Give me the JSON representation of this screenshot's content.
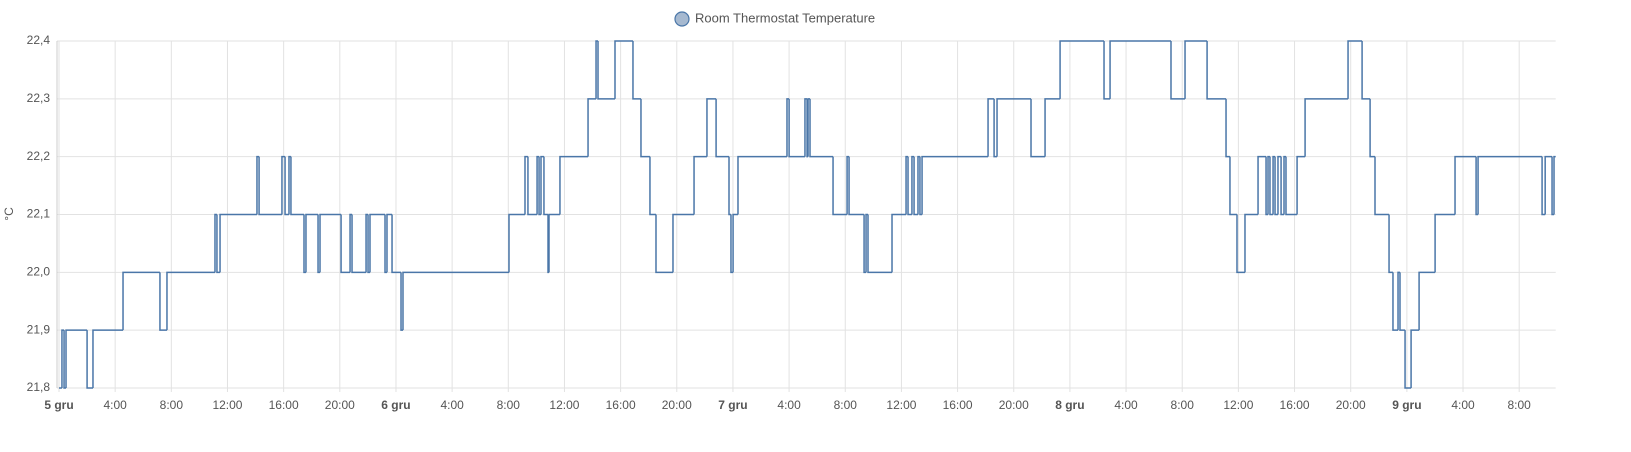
{
  "chart_data": {
    "type": "step-line",
    "legend_label": "Room Thermostat Temperature",
    "ylabel": "°C",
    "grid": true,
    "xlim": [
      0,
      106.6
    ],
    "xticks": [
      {
        "value": 0,
        "label": "5 gru"
      },
      {
        "value": 4,
        "label": "4:00"
      },
      {
        "value": 8,
        "label": "8:00"
      },
      {
        "value": 12,
        "label": "12:00"
      },
      {
        "value": 16,
        "label": "16:00"
      },
      {
        "value": 20,
        "label": "20:00"
      },
      {
        "value": 24,
        "label": "6 gru"
      },
      {
        "value": 28,
        "label": "4:00"
      },
      {
        "value": 32,
        "label": "8:00"
      },
      {
        "value": 36,
        "label": "12:00"
      },
      {
        "value": 40,
        "label": "16:00"
      },
      {
        "value": 44,
        "label": "20:00"
      },
      {
        "value": 48,
        "label": "7 gru"
      },
      {
        "value": 52,
        "label": "4:00"
      },
      {
        "value": 56,
        "label": "8:00"
      },
      {
        "value": 60,
        "label": "12:00"
      },
      {
        "value": 64,
        "label": "16:00"
      },
      {
        "value": 68,
        "label": "20:00"
      },
      {
        "value": 72,
        "label": "8 gru"
      },
      {
        "value": 76,
        "label": "4:00"
      },
      {
        "value": 80,
        "label": "8:00"
      },
      {
        "value": 84,
        "label": "12:00"
      },
      {
        "value": 88,
        "label": "16:00"
      },
      {
        "value": 92,
        "label": "20:00"
      },
      {
        "value": 96,
        "label": "9 gru"
      },
      {
        "value": 100,
        "label": "4:00"
      },
      {
        "value": 104,
        "label": "8:00"
      }
    ],
    "ylim": [
      21.8,
      22.4
    ],
    "yticks": [
      {
        "value": 21.8,
        "label": "21,8"
      },
      {
        "value": 21.9,
        "label": "21,9"
      },
      {
        "value": 22.0,
        "label": "22,0"
      },
      {
        "value": 22.1,
        "label": "22,1"
      },
      {
        "value": 22.2,
        "label": "22,2"
      },
      {
        "value": 22.3,
        "label": "22,3"
      },
      {
        "value": 22.4,
        "label": "22,4"
      }
    ],
    "series": [
      {
        "name": "Room Thermostat Temperature",
        "color": "#4a76a8",
        "x": [
          0,
          0.21,
          0.36,
          0.5,
          2.0,
          2.42,
          4.56,
          7.19,
          7.69,
          11.11,
          11.25,
          11.47,
          14.1,
          14.25,
          15.88,
          16.1,
          16.38,
          16.52,
          17.45,
          17.59,
          18.45,
          18.59,
          20.09,
          20.73,
          20.87,
          21.87,
          22.01,
          22.15,
          23.22,
          23.36,
          23.72,
          24.36,
          24.5,
          32.05,
          33.19,
          33.4,
          34.05,
          34.19,
          34.33,
          34.54,
          34.83,
          34.9,
          35.68,
          37.68,
          38.25,
          38.39,
          39.6,
          40.88,
          41.45,
          42.09,
          42.52,
          43.73,
          45.23,
          46.15,
          46.8,
          47.72,
          47.86,
          48.01,
          48.36,
          51.85,
          52.0,
          53.13,
          53.28,
          53.35,
          53.49,
          55.13,
          56.13,
          56.27,
          57.34,
          57.48,
          57.62,
          59.33,
          60.33,
          60.47,
          60.75,
          60.9,
          61.18,
          61.32,
          61.47,
          66.17,
          66.6,
          66.81,
          69.23,
          70.23,
          71.3,
          74.43,
          74.86,
          79.2,
          80.2,
          81.77,
          83.12,
          83.4,
          83.9,
          84.47,
          85.4,
          85.97,
          86.11,
          86.25,
          86.47,
          86.61,
          86.82,
          87.04,
          87.25,
          87.39,
          88.18,
          88.75,
          91.81,
          92.81,
          93.38,
          93.73,
          94.73,
          95.01,
          95.37,
          95.51,
          95.87,
          96.3,
          96.87,
          98.01,
          99.43,
          100.93,
          101.07,
          105.63,
          105.85,
          106.34,
          106.48
        ],
        "values": [
          21.8,
          21.9,
          21.8,
          21.9,
          21.8,
          21.9,
          22.0,
          21.9,
          22.0,
          22.1,
          22.0,
          22.1,
          22.2,
          22.1,
          22.2,
          22.1,
          22.2,
          22.1,
          22.0,
          22.1,
          22.0,
          22.1,
          22.0,
          22.1,
          22.0,
          22.1,
          22.0,
          22.1,
          22.0,
          22.1,
          22.0,
          21.9,
          22.0,
          22.1,
          22.2,
          22.1,
          22.2,
          22.1,
          22.2,
          22.1,
          22.0,
          22.1,
          22.2,
          22.3,
          22.4,
          22.3,
          22.4,
          22.3,
          22.2,
          22.1,
          22.0,
          22.1,
          22.2,
          22.3,
          22.2,
          22.1,
          22.0,
          22.1,
          22.2,
          22.3,
          22.2,
          22.3,
          22.2,
          22.3,
          22.2,
          22.1,
          22.2,
          22.1,
          22.0,
          22.1,
          22.0,
          22.1,
          22.2,
          22.1,
          22.2,
          22.1,
          22.2,
          22.1,
          22.2,
          22.3,
          22.2,
          22.3,
          22.2,
          22.3,
          22.4,
          22.3,
          22.4,
          22.3,
          22.4,
          22.3,
          22.2,
          22.1,
          22.0,
          22.1,
          22.2,
          22.1,
          22.2,
          22.1,
          22.2,
          22.1,
          22.2,
          22.1,
          22.2,
          22.1,
          22.2,
          22.3,
          22.4,
          22.3,
          22.2,
          22.1,
          22.0,
          21.9,
          22.0,
          21.9,
          21.8,
          21.9,
          22.0,
          22.1,
          22.2,
          22.1,
          22.2,
          22.1,
          22.2,
          22.1,
          22.2
        ]
      }
    ]
  }
}
